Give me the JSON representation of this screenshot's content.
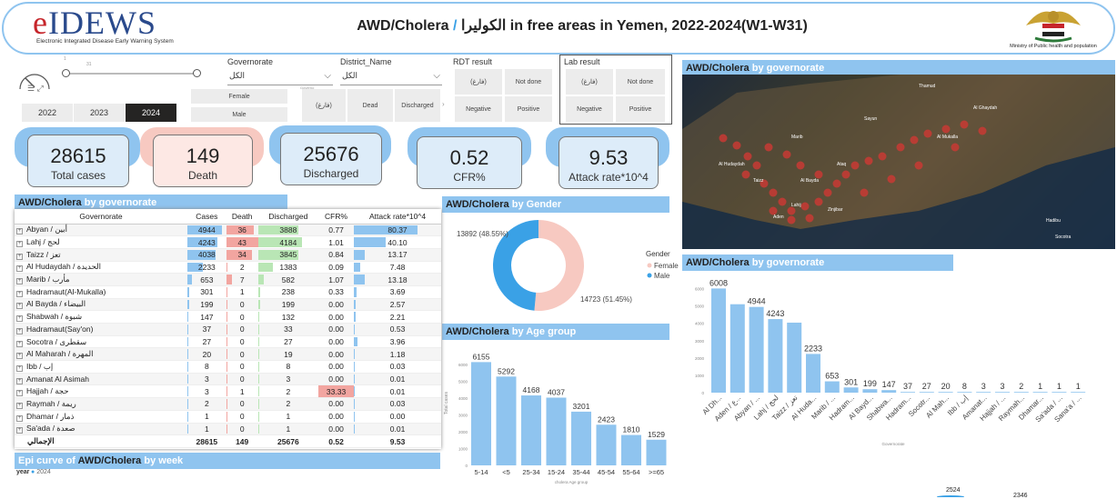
{
  "header": {
    "logo_text": "IDEWS",
    "logo_e": "e",
    "logo_sub": "Electronic Integrated Disease Early Warning System",
    "title_a": "AWD/Cholera",
    "title_sep": "/",
    "title_b": "الكوليرا in free areas in Yemen, 2022-2024(W1-W31)",
    "ministry": "Ministry of Public health and population"
  },
  "filters": {
    "gov_label": "Governorate",
    "gov_value": "الكل",
    "district_label": "District_Name",
    "district_value": "الكل",
    "rdt_label": "RDT result",
    "rdt_options": [
      "(فارغ)",
      "Not done",
      "Negative",
      "Positive"
    ],
    "lab_label": "Lab result",
    "lab_options": [
      "(فارغ)",
      "Not done",
      "Negative",
      "Positive"
    ],
    "gender_options": [
      "Female",
      "Male"
    ],
    "outcome_options": [
      "(فارغ)",
      "Dead",
      "Discharged"
    ],
    "years": [
      "2022",
      "2023",
      "2024"
    ],
    "selected_year": "2024",
    "slider_min": "1",
    "slider_max": "31",
    "mini_label": "Governo"
  },
  "kpis": [
    {
      "value": "28615",
      "label": "Total cases"
    },
    {
      "value": "149",
      "label": "Death"
    },
    {
      "value": "25676",
      "label": "Discharged"
    },
    {
      "value": "0.52",
      "label": "CFR%"
    },
    {
      "value": "9.53",
      "label": "Attack rate*10^4"
    }
  ],
  "sections": {
    "by_gov": "by governorate",
    "by_gender": "by Gender",
    "by_age": "by Age group",
    "epi": "Epi curve of",
    "by_week": "by week",
    "awd": "AWD/Cholera"
  },
  "table": {
    "columns": [
      "Governorate",
      "Cases",
      "Death",
      "Discharged",
      "CFR%",
      "Attack rate*10^4"
    ],
    "rows": [
      [
        "Abyan / أبين",
        "4944",
        "36",
        "3888",
        "0.77",
        "80.37"
      ],
      [
        "Lahj / لحج",
        "4243",
        "43",
        "4184",
        "1.01",
        "40.10"
      ],
      [
        "Taizz / تعز",
        "4038",
        "34",
        "3845",
        "0.84",
        "13.17"
      ],
      [
        "Al Hudaydah / الحديدة",
        "2233",
        "2",
        "1383",
        "0.09",
        "7.48"
      ],
      [
        "Marib / مأرب",
        "653",
        "7",
        "582",
        "1.07",
        "13.18"
      ],
      [
        "Hadramaut(Al-Mukalla)",
        "301",
        "1",
        "238",
        "0.33",
        "3.69"
      ],
      [
        "Al Bayda / البيضاء",
        "199",
        "0",
        "199",
        "0.00",
        "2.57"
      ],
      [
        "Shabwah / شبوة",
        "147",
        "0",
        "132",
        "0.00",
        "2.21"
      ],
      [
        "Hadramaut(Say'on)",
        "37",
        "0",
        "33",
        "0.00",
        "0.53"
      ],
      [
        "Socotra / سقطرى",
        "27",
        "0",
        "27",
        "0.00",
        "3.96"
      ],
      [
        "Al Maharah / المهرة",
        "20",
        "0",
        "19",
        "0.00",
        "1.18"
      ],
      [
        "Ibb / إب",
        "8",
        "0",
        "8",
        "0.00",
        "0.03"
      ],
      [
        "Amanat Al Asimah",
        "3",
        "0",
        "3",
        "0.00",
        "0.01"
      ],
      [
        "Hajjah / حجة",
        "3",
        "1",
        "2",
        "33.33",
        "0.01"
      ],
      [
        "Raymah / ريمة",
        "2",
        "0",
        "2",
        "0.00",
        "0.03"
      ],
      [
        "Dhamar / ذمار",
        "1",
        "0",
        "1",
        "0.00",
        "0.00"
      ],
      [
        "Sa'ada / صعدة",
        "1",
        "0",
        "1",
        "0.00",
        "0.01"
      ]
    ],
    "total": [
      "الإجمالي",
      "28615",
      "149",
      "25676",
      "0.52",
      "9.53"
    ]
  },
  "map_labels": [
    "Thamud",
    "Al Ghaydah",
    "Sayun",
    "Al Mukalla",
    "Marib",
    "Ataq",
    "Aden",
    "Taizz",
    "Al Hudaydah",
    "Al Bayda",
    "Zinjibar",
    "Lahij",
    "Hadibu",
    "Socotra"
  ],
  "chart_data": [
    {
      "type": "pie",
      "title": "AWD/Cholera by Gender",
      "legend_title": "Gender",
      "categories": [
        "Female",
        "Male"
      ],
      "values": [
        14723,
        13892
      ],
      "labels": [
        "14723 (51.45%)",
        "13892 (48.55%)"
      ],
      "colors": [
        "#f7c9c1",
        "#3aa1e6"
      ]
    },
    {
      "type": "bar",
      "title": "AWD/Cholera by Age group",
      "xlabel": "cholera Age group",
      "ylabel": "",
      "categories": [
        "5-14",
        "<5",
        "25-34",
        "15-24",
        "35-44",
        "45-54",
        "55-64",
        ">=65"
      ],
      "values": [
        6155,
        5292,
        4168,
        4037,
        3201,
        2423,
        1810,
        1529
      ],
      "ylim": [
        0,
        6500
      ],
      "color": "#8fc4ef"
    },
    {
      "type": "bar",
      "title": "AWD/Cholera by governorate",
      "xlabel": "Governorate",
      "ylabel": "",
      "categories": [
        "Al Dh...",
        "Aden / ع...",
        "Abyan / ...",
        "Lahj / لحج",
        "Taizz / تعز",
        "Al Huda...",
        "Marib / ...",
        "Hadram...",
        "Al Bayd...",
        "Shabwa...",
        "Hadram...",
        "Socotr...",
        "Al Mah...",
        "Ibb / إب",
        "Amanat...",
        "Hajjah / ...",
        "Raymah...",
        "Dhamar...",
        "Sa'ada / ...",
        "Sana'a / ..."
      ],
      "values": [
        6008,
        5100,
        4944,
        4243,
        4038,
        2233,
        653,
        301,
        199,
        147,
        37,
        27,
        20,
        8,
        3,
        3,
        2,
        1,
        1,
        1
      ],
      "value_labels": [
        "6008",
        "",
        "4944",
        "4243",
        "",
        "2233",
        "653",
        "301",
        "199",
        "147",
        "37",
        "27",
        "20",
        "8",
        "3",
        "3",
        "2",
        "1",
        "1",
        "1"
      ],
      "ylim": [
        0,
        6500
      ],
      "color": "#8fc4ef"
    },
    {
      "type": "line",
      "title": "Epi curve of AWD/Cholera by week",
      "legend_title": "year",
      "series": [
        {
          "name": "2024",
          "values": []
        }
      ],
      "annotations": [
        "2524",
        "2346"
      ]
    }
  ]
}
